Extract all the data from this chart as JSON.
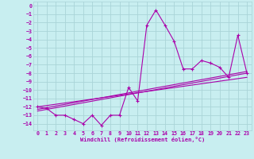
{
  "xlabel": "Windchill (Refroidissement éolien,°C)",
  "bg_color": "#c8eef0",
  "grid_color": "#aad4d8",
  "line_color": "#aa00aa",
  "xlim": [
    -0.5,
    23.5
  ],
  "ylim": [
    -14.8,
    0.5
  ],
  "xticks": [
    0,
    1,
    2,
    3,
    4,
    5,
    6,
    7,
    8,
    9,
    10,
    11,
    12,
    13,
    14,
    15,
    16,
    17,
    18,
    19,
    20,
    21,
    22,
    23
  ],
  "yticks": [
    0,
    -1,
    -2,
    -3,
    -4,
    -5,
    -6,
    -7,
    -8,
    -9,
    -10,
    -11,
    -12,
    -13,
    -14
  ],
  "scatter_x": [
    0,
    1,
    2,
    3,
    4,
    5,
    6,
    7,
    8,
    9,
    10,
    11,
    12,
    13,
    14,
    15,
    16,
    17,
    18,
    19,
    20,
    21,
    22,
    23
  ],
  "scatter_y": [
    -12.0,
    -12.2,
    -13.0,
    -13.0,
    -13.5,
    -14.0,
    -13.0,
    -14.2,
    -13.0,
    -13.0,
    -9.7,
    -11.3,
    -2.3,
    -0.5,
    -2.3,
    -4.2,
    -7.5,
    -7.5,
    -6.5,
    -6.8,
    -7.3,
    -8.5,
    -3.5,
    -8.0
  ],
  "line1_x": [
    0,
    23
  ],
  "line1_y": [
    -12.3,
    -7.8
  ],
  "line2_x": [
    0,
    23
  ],
  "line2_y": [
    -12.0,
    -8.5
  ],
  "line3_x": [
    0,
    23
  ],
  "line3_y": [
    -12.5,
    -8.0
  ]
}
